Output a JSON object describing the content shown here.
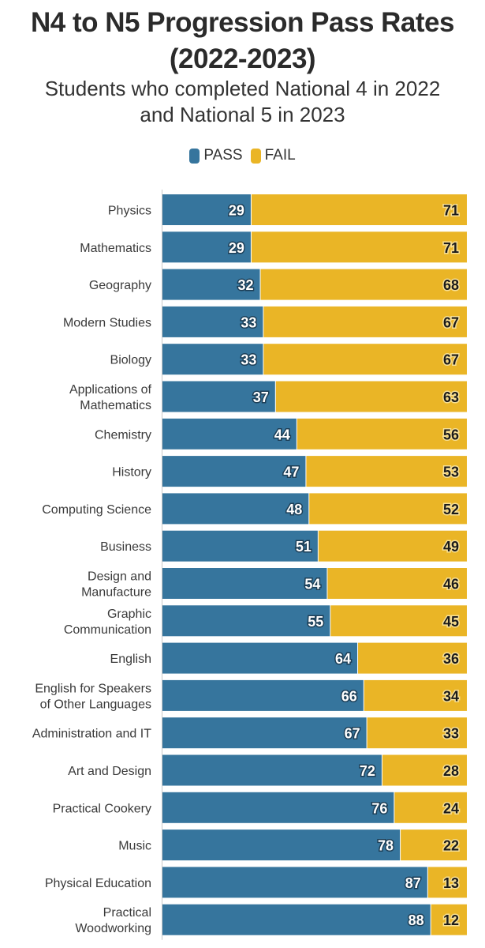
{
  "chart_data": {
    "type": "bar",
    "orientation": "horizontal-stacked",
    "title": "N4 to N5 Progression Pass Rates (2022-2023)",
    "subtitle": "Students who completed National 4 in 2022 and National 5 in 2023",
    "xlabel": "",
    "ylabel": "",
    "xlim": [
      0,
      100
    ],
    "legend_position": "top-center",
    "categories": [
      "Physics",
      "Mathematics",
      "Geography",
      "Modern Studies",
      "Biology",
      "Applications of Mathematics",
      "Chemistry",
      "History",
      "Computing Science",
      "Business",
      "Design and Manufacture",
      "Graphic Communication",
      "English",
      "English for Speakers of Other Languages",
      "Administration and IT",
      "Art and Design",
      "Practical Cookery",
      "Music",
      "Physical Education",
      "Practical Woodworking"
    ],
    "category_lines": [
      [
        "Physics"
      ],
      [
        "Mathematics"
      ],
      [
        "Geography"
      ],
      [
        "Modern Studies"
      ],
      [
        "Biology"
      ],
      [
        "Applications of",
        "Mathematics"
      ],
      [
        "Chemistry"
      ],
      [
        "History"
      ],
      [
        "Computing Science"
      ],
      [
        "Business"
      ],
      [
        "Design and",
        "Manufacture"
      ],
      [
        "Graphic",
        "Communication"
      ],
      [
        "English"
      ],
      [
        "English for Speakers",
        "of Other Languages"
      ],
      [
        "Administration and IT"
      ],
      [
        "Art and Design"
      ],
      [
        "Practical Cookery"
      ],
      [
        "Music"
      ],
      [
        "Physical Education"
      ],
      [
        "Practical",
        "Woodworking"
      ]
    ],
    "series": [
      {
        "name": "PASS",
        "color": "#36759d",
        "values": [
          29,
          29,
          32,
          33,
          33,
          37,
          44,
          47,
          48,
          51,
          54,
          55,
          64,
          66,
          67,
          72,
          76,
          78,
          87,
          88
        ]
      },
      {
        "name": "FAIL",
        "color": "#eab526",
        "values": [
          71,
          71,
          68,
          67,
          67,
          63,
          56,
          53,
          52,
          49,
          46,
          45,
          36,
          34,
          33,
          28,
          24,
          22,
          13,
          12
        ]
      }
    ]
  },
  "title_lines": [
    "N4 to N5 Progression Pass Rates",
    "(2022-2023)"
  ],
  "subtitle_lines": [
    "Students who completed National 4 in 2022",
    "and National 5 in 2023"
  ],
  "legend": [
    {
      "label": "PASS",
      "color": "#36759d"
    },
    {
      "label": "FAIL",
      "color": "#eab526"
    }
  ]
}
